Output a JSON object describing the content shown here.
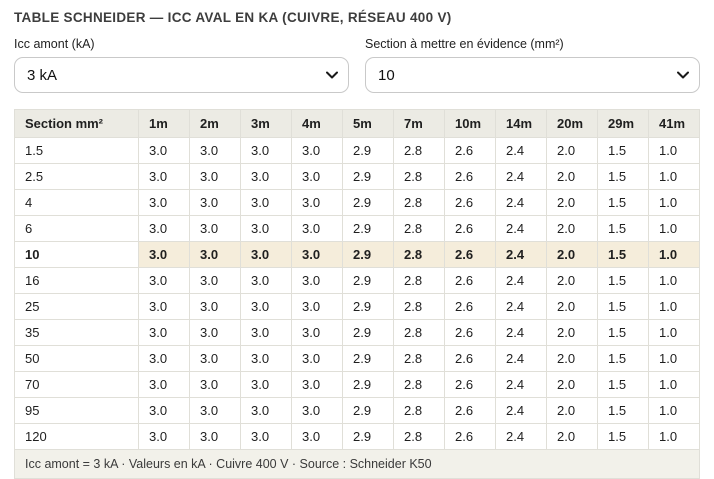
{
  "page": {
    "title": "TABLE SCHNEIDER — ICC AVAL EN KA (CUIVRE, RÉSEAU 400 V)"
  },
  "controls": {
    "icc": {
      "label": "Icc amont (kA)",
      "value": "3 kA"
    },
    "section": {
      "label": "Section à mettre en évidence (mm²)",
      "value": "10"
    }
  },
  "icons": {
    "chevron": "chevron-down-icon"
  },
  "table": {
    "columns": [
      "Section mm²",
      "1m",
      "2m",
      "3m",
      "4m",
      "5m",
      "7m",
      "10m",
      "14m",
      "20m",
      "29m",
      "41m"
    ],
    "highlighted_section": "10",
    "rows": [
      {
        "section": "1.5",
        "values": [
          "3.0",
          "3.0",
          "3.0",
          "3.0",
          "2.9",
          "2.8",
          "2.6",
          "2.4",
          "2.0",
          "1.5",
          "1.0"
        ]
      },
      {
        "section": "2.5",
        "values": [
          "3.0",
          "3.0",
          "3.0",
          "3.0",
          "2.9",
          "2.8",
          "2.6",
          "2.4",
          "2.0",
          "1.5",
          "1.0"
        ]
      },
      {
        "section": "4",
        "values": [
          "3.0",
          "3.0",
          "3.0",
          "3.0",
          "2.9",
          "2.8",
          "2.6",
          "2.4",
          "2.0",
          "1.5",
          "1.0"
        ]
      },
      {
        "section": "6",
        "values": [
          "3.0",
          "3.0",
          "3.0",
          "3.0",
          "2.9",
          "2.8",
          "2.6",
          "2.4",
          "2.0",
          "1.5",
          "1.0"
        ]
      },
      {
        "section": "10",
        "values": [
          "3.0",
          "3.0",
          "3.0",
          "3.0",
          "2.9",
          "2.8",
          "2.6",
          "2.4",
          "2.0",
          "1.5",
          "1.0"
        ]
      },
      {
        "section": "16",
        "values": [
          "3.0",
          "3.0",
          "3.0",
          "3.0",
          "2.9",
          "2.8",
          "2.6",
          "2.4",
          "2.0",
          "1.5",
          "1.0"
        ]
      },
      {
        "section": "25",
        "values": [
          "3.0",
          "3.0",
          "3.0",
          "3.0",
          "2.9",
          "2.8",
          "2.6",
          "2.4",
          "2.0",
          "1.5",
          "1.0"
        ]
      },
      {
        "section": "35",
        "values": [
          "3.0",
          "3.0",
          "3.0",
          "3.0",
          "2.9",
          "2.8",
          "2.6",
          "2.4",
          "2.0",
          "1.5",
          "1.0"
        ]
      },
      {
        "section": "50",
        "values": [
          "3.0",
          "3.0",
          "3.0",
          "3.0",
          "2.9",
          "2.8",
          "2.6",
          "2.4",
          "2.0",
          "1.5",
          "1.0"
        ]
      },
      {
        "section": "70",
        "values": [
          "3.0",
          "3.0",
          "3.0",
          "3.0",
          "2.9",
          "2.8",
          "2.6",
          "2.4",
          "2.0",
          "1.5",
          "1.0"
        ]
      },
      {
        "section": "95",
        "values": [
          "3.0",
          "3.0",
          "3.0",
          "3.0",
          "2.9",
          "2.8",
          "2.6",
          "2.4",
          "2.0",
          "1.5",
          "1.0"
        ]
      },
      {
        "section": "120",
        "values": [
          "3.0",
          "3.0",
          "3.0",
          "3.0",
          "2.9",
          "2.8",
          "2.6",
          "2.4",
          "2.0",
          "1.5",
          "1.0"
        ]
      }
    ],
    "footer": "Icc amont = 3 kA · Valeurs en kA · Cuivre 400 V · Source : Schneider K50"
  },
  "colors": {
    "header_bg": "#ECEBE4",
    "highlight_bg": "#F5EDDB",
    "footer_bg": "#F2F1EA",
    "border": "#E0DFD8"
  }
}
